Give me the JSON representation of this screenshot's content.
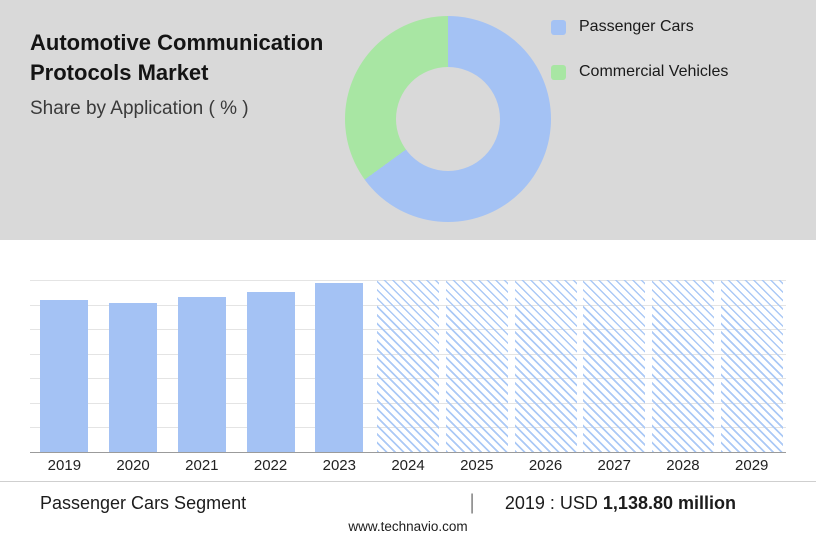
{
  "header": {
    "title_line1": "Automotive Communication",
    "title_line2": "Protocols Market",
    "subtitle": "Share by Application ( % )"
  },
  "legend": [
    {
      "label": "Passenger Cars",
      "color": "#a4c2f4"
    },
    {
      "label": "Commercial Vehicles",
      "color": "#a8e6a3"
    }
  ],
  "chart_data": [
    {
      "type": "pie",
      "donut": true,
      "title": "Share by Application ( % )",
      "labels": [
        "Passenger Cars",
        "Commercial Vehicles"
      ],
      "values": [
        65,
        35
      ],
      "colors": [
        "#a4c2f4",
        "#a8e6a3"
      ],
      "legend_position": "right"
    },
    {
      "type": "bar",
      "title": "Passenger Cars Segment (USD million)",
      "categories": [
        "2019",
        "2020",
        "2021",
        "2022",
        "2023",
        "2024",
        "2025",
        "2026",
        "2027",
        "2028",
        "2029"
      ],
      "values": [
        1138.8,
        1115,
        1160,
        1200,
        1270,
        null,
        null,
        null,
        null,
        null,
        null
      ],
      "forecast_from": "2024",
      "note": "2024-2029 are forecast years rendered as full-height diagonally hatched bars",
      "bar_color": "#a4c2f4",
      "ylim": [
        0,
        1290
      ],
      "grid": true
    }
  ],
  "footer": {
    "segment_label": "Passenger Cars Segment",
    "separator": "|",
    "value_prefix": "2019 : USD ",
    "value_bold": "1,138.80 million",
    "website": "www.technavio.com"
  }
}
